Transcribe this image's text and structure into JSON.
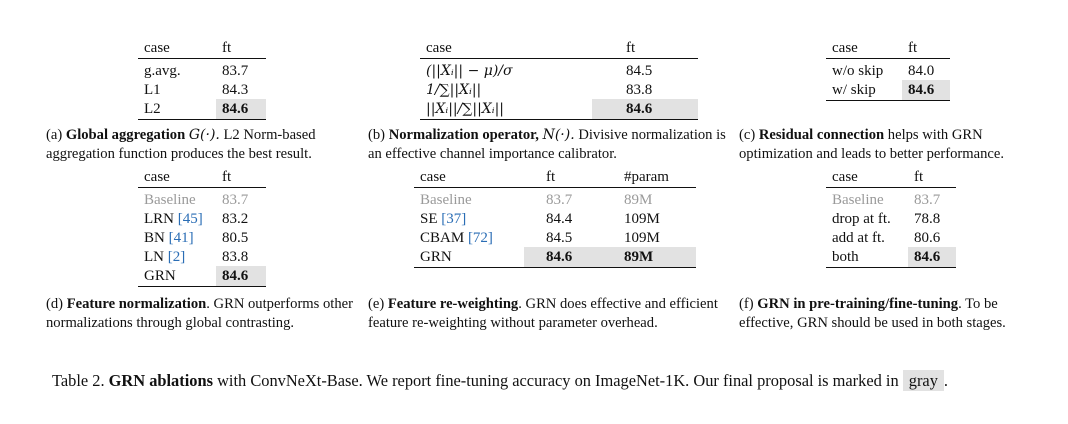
{
  "panel_a": {
    "headers": [
      "case",
      "ft"
    ],
    "rows": [
      {
        "case": "g.avg.",
        "ft": "83.7"
      },
      {
        "case": "L1",
        "ft": "84.3"
      },
      {
        "case": "L2",
        "ft": "84.6"
      }
    ],
    "caption_label": "(a)",
    "caption_title": "Global aggregation",
    "caption_math": "G(·).",
    "caption_text": "L2 Norm-based aggregation function produces the best result."
  },
  "panel_b": {
    "headers": [
      "case",
      "ft"
    ],
    "rows": [
      {
        "case": "(||Xᵢ|| − μ)/σ",
        "ft": "84.5"
      },
      {
        "case": "1/∑||Xᵢ||",
        "ft": "83.8"
      },
      {
        "case": "||Xᵢ||/∑||Xᵢ||",
        "ft": "84.6"
      }
    ],
    "caption_label": "(b)",
    "caption_title": "Normalization operator,",
    "caption_math": "N(·).",
    "caption_text": "Divisive normalization is an effective channel importance calibrator."
  },
  "panel_c": {
    "headers": [
      "case",
      "ft"
    ],
    "rows": [
      {
        "case": "w/o skip",
        "ft": "84.0"
      },
      {
        "case": "w/ skip",
        "ft": "84.6"
      }
    ],
    "caption_label": "(c)",
    "caption_title": "Residual connection",
    "caption_text": "helps with GRN optimization and leads to better performance."
  },
  "panel_d": {
    "headers": [
      "case",
      "ft"
    ],
    "rows": [
      {
        "case": "Baseline",
        "cite": "",
        "ft": "83.7"
      },
      {
        "case": "LRN",
        "cite": "[45]",
        "ft": "83.2"
      },
      {
        "case": "BN",
        "cite": "[41]",
        "ft": "80.5"
      },
      {
        "case": "LN",
        "cite": "[2]",
        "ft": "83.8"
      },
      {
        "case": "GRN",
        "cite": "",
        "ft": "84.6"
      }
    ],
    "caption_label": "(d)",
    "caption_title": "Feature normalization",
    "caption_text": ". GRN outperforms other normalizations through global contrasting."
  },
  "panel_e": {
    "headers": [
      "case",
      "ft",
      "#param"
    ],
    "rows": [
      {
        "case": "Baseline",
        "cite": "",
        "ft": "83.7",
        "param": "89M"
      },
      {
        "case": "SE",
        "cite": "[37]",
        "ft": "84.4",
        "param": "109M"
      },
      {
        "case": "CBAM",
        "cite": "[72]",
        "ft": "84.5",
        "param": "109M"
      },
      {
        "case": "GRN",
        "cite": "",
        "ft": "84.6",
        "param": "89M"
      }
    ],
    "caption_label": "(e)",
    "caption_title": "Feature re-weighting",
    "caption_text": ". GRN does effective and efficient feature re-weighting without parameter overhead."
  },
  "panel_f": {
    "headers": [
      "case",
      "ft"
    ],
    "rows": [
      {
        "case": "Baseline",
        "ft": "83.7"
      },
      {
        "case": "drop at ft.",
        "ft": "78.8"
      },
      {
        "case": "add at ft.",
        "ft": "80.6"
      },
      {
        "case": "both",
        "ft": "84.6"
      }
    ],
    "caption_label": "(f)",
    "caption_title": "GRN in pre-training/fine-tuning",
    "caption_text": ". To be effective, GRN should be used in both stages."
  },
  "table_caption": {
    "prefix": "Table 2.",
    "title": "GRN ablations",
    "text": "with ConvNeXt-Base. We report fine-tuning accuracy on ImageNet-1K. Our final proposal is marked in",
    "chip": "gray",
    "suffix": "."
  }
}
